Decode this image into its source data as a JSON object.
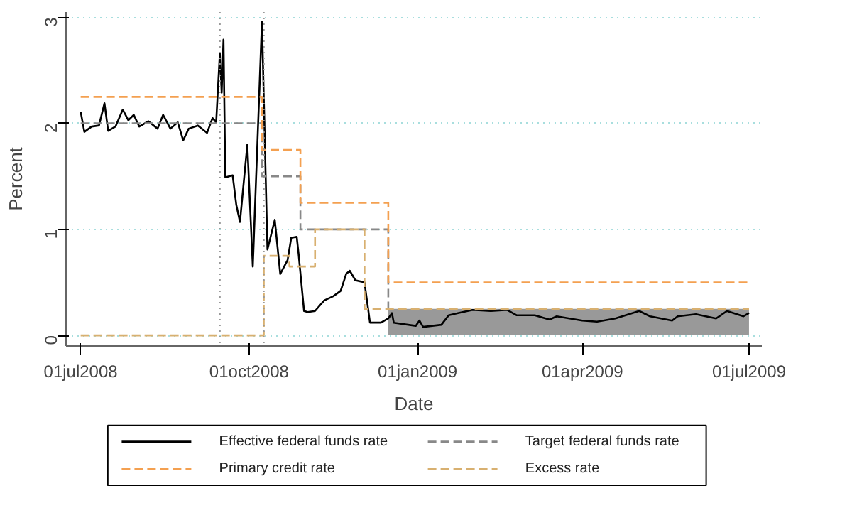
{
  "chart_data": {
    "type": "line",
    "xlabel": "Date",
    "ylabel": "Percent",
    "xlim": [
      "2008-06-23",
      "2009-07-08"
    ],
    "ylim": [
      -0.1,
      3.05
    ],
    "xticks": [
      {
        "value": "2008-07-01",
        "label": "01jul2008"
      },
      {
        "value": "2008-10-01",
        "label": "01oct2008"
      },
      {
        "value": "2009-01-01",
        "label": "01jan2009"
      },
      {
        "value": "2009-04-01",
        "label": "01apr2009"
      },
      {
        "value": "2009-07-01",
        "label": "01jul2009"
      }
    ],
    "yticks": [
      0,
      1,
      2,
      3
    ],
    "grid": "y",
    "legend": "bottom",
    "ref_lines": [
      {
        "axis": "x",
        "value": "2008-09-15",
        "color": "#999999",
        "line_style": "dotted"
      },
      {
        "axis": "x",
        "value": "2008-10-09",
        "color": "#999999",
        "line_style": "dotted"
      }
    ],
    "series": [
      {
        "type": "area",
        "color": "#999999",
        "x": [
          "2008-12-16",
          "2009-07-01"
        ],
        "values": [
          0.25,
          0.25
        ]
      },
      {
        "name": "Effective federal funds rate",
        "color": "#000000",
        "line_style": "solid",
        "x": [
          "2008-07-01",
          "2008-07-03",
          "2008-07-07",
          "2008-07-11",
          "2008-07-14",
          "2008-07-16",
          "2008-07-20",
          "2008-07-24",
          "2008-07-27",
          "2008-07-30",
          "2008-08-02",
          "2008-08-07",
          "2008-08-12",
          "2008-08-15",
          "2008-08-19",
          "2008-08-23",
          "2008-08-26",
          "2008-08-29",
          "2008-09-03",
          "2008-09-08",
          "2008-09-11",
          "2008-09-13",
          "2008-09-15",
          "2008-09-16",
          "2008-09-17",
          "2008-09-18",
          "2008-09-22",
          "2008-09-24",
          "2008-09-26",
          "2008-09-30",
          "2008-10-03",
          "2008-10-08",
          "2008-10-11",
          "2008-10-15",
          "2008-10-18",
          "2008-10-22",
          "2008-10-24",
          "2008-10-27",
          "2008-10-28",
          "2008-10-31",
          "2008-11-02",
          "2008-11-06",
          "2008-11-11",
          "2008-11-16",
          "2008-11-20",
          "2008-11-23",
          "2008-11-25",
          "2008-11-28",
          "2008-12-03",
          "2008-12-06",
          "2008-12-12",
          "2008-12-16",
          "2008-12-18",
          "2008-12-19",
          "2008-12-31",
          "2009-01-02",
          "2009-01-04",
          "2009-01-14",
          "2009-01-18",
          "2009-01-23",
          "2009-01-31",
          "2009-02-10",
          "2009-02-19",
          "2009-02-24",
          "2009-03-06",
          "2009-03-14",
          "2009-03-18",
          "2009-04-01",
          "2009-04-09",
          "2009-04-19",
          "2009-05-02",
          "2009-05-08",
          "2009-05-20",
          "2009-05-23",
          "2009-06-02",
          "2009-06-13",
          "2009-06-19",
          "2009-06-28",
          "2009-07-01"
        ],
        "values": [
          2.11,
          1.92,
          1.97,
          1.98,
          2.19,
          1.93,
          1.97,
          2.13,
          2.03,
          2.08,
          1.97,
          2.02,
          1.95,
          2.08,
          1.95,
          2.01,
          1.84,
          1.95,
          1.98,
          1.91,
          2.05,
          2.01,
          2.66,
          2.29,
          2.79,
          1.49,
          1.51,
          1.23,
          1.07,
          1.8,
          0.65,
          2.96,
          0.81,
          1.09,
          0.58,
          0.71,
          0.92,
          0.93,
          0.77,
          0.23,
          0.22,
          0.23,
          0.33,
          0.37,
          0.42,
          0.58,
          0.61,
          0.52,
          0.5,
          0.12,
          0.12,
          0.16,
          0.21,
          0.12,
          0.09,
          0.14,
          0.08,
          0.1,
          0.19,
          0.21,
          0.24,
          0.23,
          0.24,
          0.19,
          0.19,
          0.15,
          0.18,
          0.14,
          0.13,
          0.16,
          0.23,
          0.18,
          0.14,
          0.18,
          0.2,
          0.16,
          0.23,
          0.18,
          0.21
        ]
      },
      {
        "name": "Target federal funds rate",
        "color": "#888888",
        "line_style": "dashed",
        "x": [
          "2008-07-01",
          "2008-10-08",
          "2008-10-08",
          "2008-10-29",
          "2008-10-29",
          "2008-12-16",
          "2008-12-16"
        ],
        "values": [
          2,
          2,
          1.5,
          1.5,
          1,
          1,
          0.25
        ]
      },
      {
        "name": "Primary credit rate",
        "color": "#f4a050",
        "line_style": "dashed",
        "x": [
          "2008-07-01",
          "2008-10-08",
          "2008-10-08",
          "2008-10-29",
          "2008-10-29",
          "2008-12-16",
          "2008-12-16",
          "2009-07-01"
        ],
        "values": [
          2.25,
          2.25,
          1.75,
          1.75,
          1.25,
          1.25,
          0.5,
          0.5
        ]
      },
      {
        "name": "Excess rate",
        "color": "#d8b070",
        "line_style": "dashed",
        "x": [
          "2008-07-01",
          "2008-10-09",
          "2008-10-09",
          "2008-10-23",
          "2008-10-23",
          "2008-11-06",
          "2008-11-06",
          "2008-12-03",
          "2008-12-03",
          "2009-07-01"
        ],
        "values": [
          0,
          0,
          0.75,
          0.75,
          0.65,
          0.65,
          1.0,
          1.0,
          0.25,
          0.25
        ]
      }
    ]
  }
}
